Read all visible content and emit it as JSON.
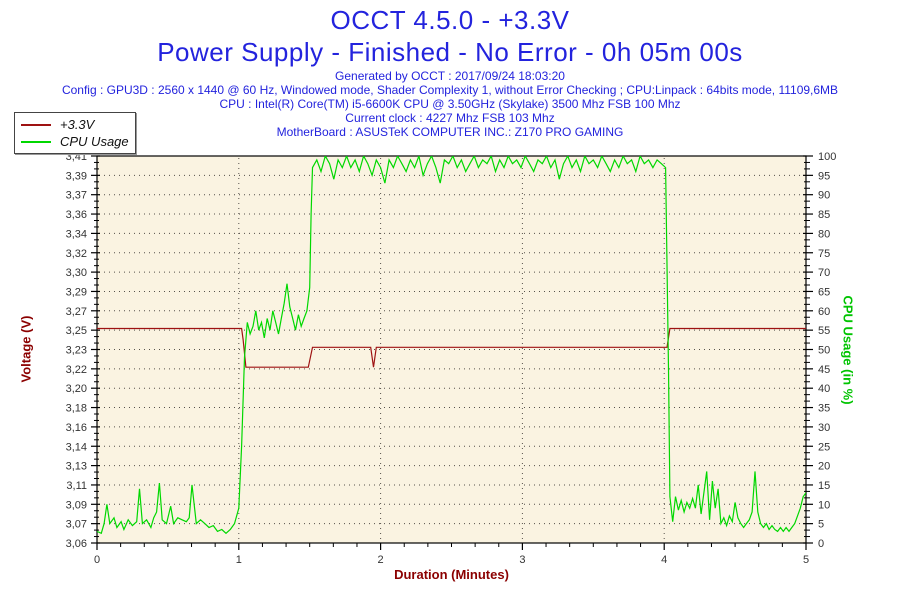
{
  "header": {
    "title": "OCCT 4.5.0 - +3.3V",
    "subtitle": "Power Supply - Finished - No Error - 0h 05m 00s",
    "generated": "Generated by OCCT : 2017/09/24 18:03:20",
    "config": "Config : GPU3D : 2560 x 1440 @ 60 Hz, Windowed mode, Shader Complexity 1, without Error Checking ; CPU:Linpack : 64bits mode, 11109,6MB",
    "cpu": "CPU : Intel(R) Core(TM) i5-6600K CPU @ 3.50GHz (Skylake) 3500 Mhz FSB 100 Mhz",
    "current_clock": "Current clock : 4227 Mhz FSB 103 Mhz",
    "motherboard": "MotherBoard : ASUSTeK COMPUTER INC.: Z170 PRO GAMING"
  },
  "legend": {
    "items": [
      {
        "label": "+3.3V",
        "color": "#9e1212"
      },
      {
        "label": "CPU Usage",
        "color": "#00d800"
      }
    ]
  },
  "colors": {
    "header_blue": "#2323dd",
    "voltage_red": "#8b0000",
    "cpu_green": "#00c400",
    "plot_border": "#000000",
    "grid_dots": "#55504a",
    "tick_label": "#333333"
  },
  "chart_data": {
    "type": "line",
    "title": "OCCT 4.5.0 - +3.3V — Power Supply - Finished - No Error - 0h 05m 00s",
    "grid": "dotted",
    "plot_bg": "#faf3e1",
    "legend_position": "top-left",
    "x_axis": {
      "label": "Duration (Minutes)",
      "min": 0,
      "max": 5,
      "tick_labels": [
        "0",
        "1",
        "2",
        "3",
        "4",
        "5"
      ],
      "minor_ticks_per_interval": 5
    },
    "y_left": {
      "label": "Voltage (V)",
      "min": 3.06,
      "max": 3.41,
      "tick_labels": [
        "3,41",
        "3,39",
        "3,37",
        "3,36",
        "3,34",
        "3,32",
        "3,30",
        "3,29",
        "3,27",
        "3,25",
        "3,23",
        "3,22",
        "3,20",
        "3,18",
        "3,16",
        "3,14",
        "3,13",
        "3,11",
        "3,09",
        "3,07",
        "3,06"
      ],
      "minor_ticks_per_interval": 2
    },
    "y_right": {
      "label": "CPU Usage (in %)",
      "min": 0,
      "max": 100,
      "tick_labels": [
        "100",
        "95",
        "90",
        "85",
        "80",
        "75",
        "70",
        "65",
        "60",
        "55",
        "50",
        "45",
        "40",
        "35",
        "30",
        "25",
        "20",
        "15",
        "10",
        "5",
        "0"
      ],
      "minor_ticks_per_interval": 2
    },
    "series": [
      {
        "name": "+3.3V",
        "axis": "left",
        "color": "#9e1212",
        "points": [
          [
            0,
            3.254
          ],
          [
            1.02,
            3.254
          ],
          [
            1.03,
            3.244
          ],
          [
            1.05,
            3.219
          ],
          [
            1.49,
            3.219
          ],
          [
            1.52,
            3.237
          ],
          [
            1.93,
            3.237
          ],
          [
            1.95,
            3.219
          ],
          [
            1.97,
            3.237
          ],
          [
            4.02,
            3.237
          ],
          [
            4.04,
            3.254
          ],
          [
            5,
            3.254
          ]
        ]
      },
      {
        "name": "CPU Usage",
        "axis": "right",
        "color": "#00d800",
        "points": [
          [
            0,
            3
          ],
          [
            0.03,
            2.5
          ],
          [
            0.05,
            5
          ],
          [
            0.07,
            10
          ],
          [
            0.09,
            5
          ],
          [
            0.12,
            6.5
          ],
          [
            0.14,
            4
          ],
          [
            0.17,
            5.5
          ],
          [
            0.19,
            3.5
          ],
          [
            0.22,
            6
          ],
          [
            0.25,
            4.5
          ],
          [
            0.28,
            5.5
          ],
          [
            0.3,
            14
          ],
          [
            0.32,
            5
          ],
          [
            0.35,
            6
          ],
          [
            0.38,
            4
          ],
          [
            0.4,
            6.5
          ],
          [
            0.42,
            8
          ],
          [
            0.44,
            15.5
          ],
          [
            0.46,
            6
          ],
          [
            0.49,
            5
          ],
          [
            0.52,
            9.5
          ],
          [
            0.54,
            5
          ],
          [
            0.57,
            6.5
          ],
          [
            0.6,
            6
          ],
          [
            0.63,
            5.5
          ],
          [
            0.65,
            6.5
          ],
          [
            0.67,
            15
          ],
          [
            0.7,
            5
          ],
          [
            0.73,
            6
          ],
          [
            0.76,
            5
          ],
          [
            0.79,
            4
          ],
          [
            0.82,
            4.5
          ],
          [
            0.85,
            3
          ],
          [
            0.88,
            3.5
          ],
          [
            0.91,
            2.5
          ],
          [
            0.94,
            3.5
          ],
          [
            0.97,
            5
          ],
          [
            1.0,
            9
          ],
          [
            1.02,
            25
          ],
          [
            1.04,
            48
          ],
          [
            1.06,
            57
          ],
          [
            1.08,
            54
          ],
          [
            1.1,
            56
          ],
          [
            1.12,
            60
          ],
          [
            1.14,
            55
          ],
          [
            1.16,
            57
          ],
          [
            1.18,
            53
          ],
          [
            1.2,
            58
          ],
          [
            1.22,
            55
          ],
          [
            1.24,
            60
          ],
          [
            1.26,
            57
          ],
          [
            1.28,
            54
          ],
          [
            1.3,
            58
          ],
          [
            1.32,
            62
          ],
          [
            1.34,
            67
          ],
          [
            1.36,
            61
          ],
          [
            1.38,
            58
          ],
          [
            1.4,
            55
          ],
          [
            1.42,
            59
          ],
          [
            1.44,
            56
          ],
          [
            1.46,
            58
          ],
          [
            1.48,
            60
          ],
          [
            1.5,
            66
          ],
          [
            1.51,
            85
          ],
          [
            1.52,
            97
          ],
          [
            1.55,
            99
          ],
          [
            1.58,
            96
          ],
          [
            1.61,
            100
          ],
          [
            1.64,
            98
          ],
          [
            1.67,
            94
          ],
          [
            1.7,
            99
          ],
          [
            1.73,
            97
          ],
          [
            1.76,
            100
          ],
          [
            1.79,
            97
          ],
          [
            1.82,
            99
          ],
          [
            1.85,
            96
          ],
          [
            1.88,
            100
          ],
          [
            1.91,
            98
          ],
          [
            1.94,
            95
          ],
          [
            1.97,
            99
          ],
          [
            2.0,
            97
          ],
          [
            2.03,
            93
          ],
          [
            2.06,
            99
          ],
          [
            2.09,
            97
          ],
          [
            2.12,
            100
          ],
          [
            2.15,
            98
          ],
          [
            2.18,
            96
          ],
          [
            2.21,
            99
          ],
          [
            2.24,
            97
          ],
          [
            2.27,
            100
          ],
          [
            2.3,
            95
          ],
          [
            2.33,
            98
          ],
          [
            2.36,
            100
          ],
          [
            2.39,
            97
          ],
          [
            2.42,
            93
          ],
          [
            2.45,
            99
          ],
          [
            2.48,
            98
          ],
          [
            2.51,
            100
          ],
          [
            2.54,
            97
          ],
          [
            2.57,
            99
          ],
          [
            2.6,
            96
          ],
          [
            2.63,
            98
          ],
          [
            2.66,
            100
          ],
          [
            2.69,
            97
          ],
          [
            2.72,
            99
          ],
          [
            2.75,
            98
          ],
          [
            2.78,
            100
          ],
          [
            2.81,
            96
          ],
          [
            2.84,
            99
          ],
          [
            2.87,
            97
          ],
          [
            2.9,
            100
          ],
          [
            2.93,
            98
          ],
          [
            2.96,
            99
          ],
          [
            2.99,
            97
          ],
          [
            3.02,
            100
          ],
          [
            3.05,
            98
          ],
          [
            3.08,
            96
          ],
          [
            3.11,
            99
          ],
          [
            3.14,
            98
          ],
          [
            3.17,
            100
          ],
          [
            3.2,
            97
          ],
          [
            3.23,
            99
          ],
          [
            3.26,
            94
          ],
          [
            3.29,
            98
          ],
          [
            3.32,
            100
          ],
          [
            3.35,
            97
          ],
          [
            3.38,
            99
          ],
          [
            3.41,
            96
          ],
          [
            3.44,
            100
          ],
          [
            3.47,
            98
          ],
          [
            3.5,
            99
          ],
          [
            3.53,
            97
          ],
          [
            3.56,
            100
          ],
          [
            3.59,
            98
          ],
          [
            3.62,
            96
          ],
          [
            3.65,
            99
          ],
          [
            3.68,
            97
          ],
          [
            3.71,
            100
          ],
          [
            3.74,
            98
          ],
          [
            3.77,
            99
          ],
          [
            3.8,
            96
          ],
          [
            3.83,
            100
          ],
          [
            3.86,
            98
          ],
          [
            3.89,
            99
          ],
          [
            3.92,
            97
          ],
          [
            3.95,
            99
          ],
          [
            3.98,
            98
          ],
          [
            4.01,
            97
          ],
          [
            4.03,
            45
          ],
          [
            4.04,
            12
          ],
          [
            4.06,
            5.5
          ],
          [
            4.08,
            12
          ],
          [
            4.1,
            8.5
          ],
          [
            4.12,
            11
          ],
          [
            4.14,
            8
          ],
          [
            4.16,
            10.5
          ],
          [
            4.18,
            9
          ],
          [
            4.2,
            11.5
          ],
          [
            4.22,
            9
          ],
          [
            4.24,
            15
          ],
          [
            4.26,
            7.5
          ],
          [
            4.28,
            13
          ],
          [
            4.3,
            18.5
          ],
          [
            4.32,
            6
          ],
          [
            4.34,
            16
          ],
          [
            4.36,
            9
          ],
          [
            4.38,
            14
          ],
          [
            4.4,
            5
          ],
          [
            4.42,
            6.5
          ],
          [
            4.44,
            4.5
          ],
          [
            4.46,
            7
          ],
          [
            4.48,
            5.5
          ],
          [
            4.5,
            10.5
          ],
          [
            4.52,
            6.5
          ],
          [
            4.54,
            5
          ],
          [
            4.56,
            4
          ],
          [
            4.58,
            5
          ],
          [
            4.6,
            6
          ],
          [
            4.62,
            8
          ],
          [
            4.64,
            18.5
          ],
          [
            4.66,
            8
          ],
          [
            4.68,
            5
          ],
          [
            4.7,
            4
          ],
          [
            4.72,
            5
          ],
          [
            4.74,
            3.5
          ],
          [
            4.76,
            4.5
          ],
          [
            4.78,
            3.5
          ],
          [
            4.8,
            3
          ],
          [
            4.82,
            4
          ],
          [
            4.84,
            3
          ],
          [
            4.86,
            4
          ],
          [
            4.88,
            3
          ],
          [
            4.9,
            4
          ],
          [
            4.92,
            5
          ],
          [
            4.94,
            7
          ],
          [
            4.96,
            9
          ],
          [
            4.98,
            12
          ],
          [
            5.0,
            13
          ]
        ]
      }
    ]
  }
}
